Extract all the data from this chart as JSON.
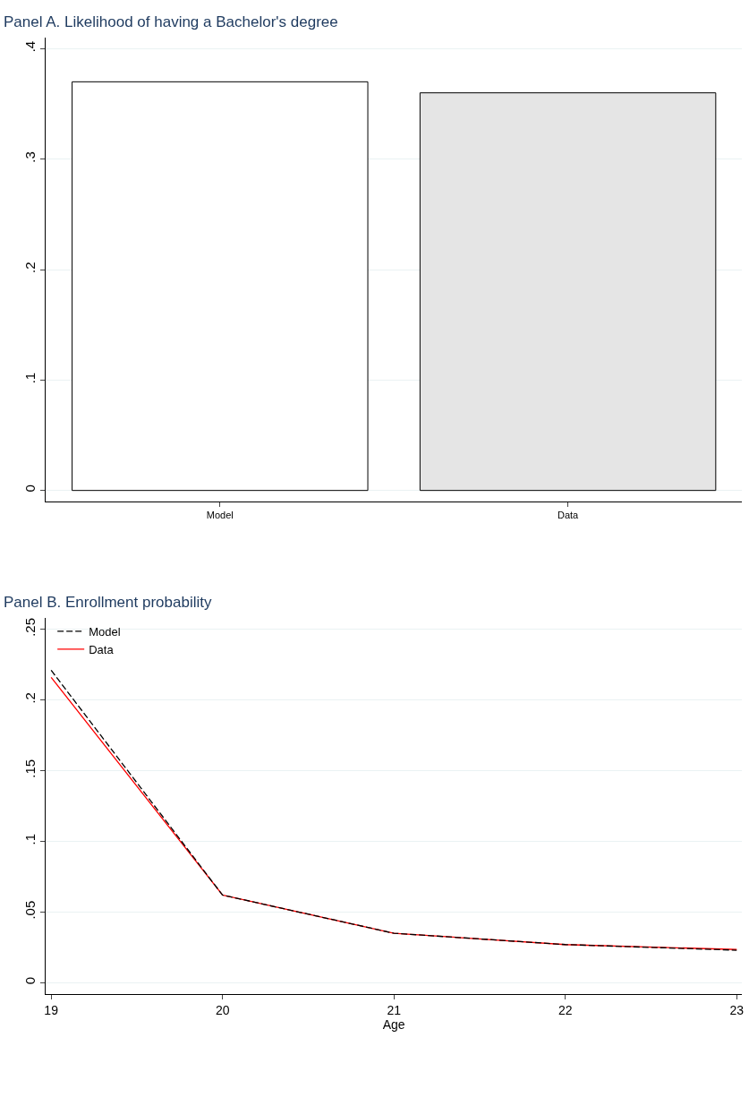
{
  "chart_data": [
    {
      "type": "bar",
      "title": "Panel A. Likelihood of having a Bachelor's degree",
      "categories": [
        "Model",
        "Data"
      ],
      "values": [
        0.37,
        0.36
      ],
      "colors": [
        "#ffffff",
        "#e5e5e5"
      ],
      "ylim": [
        -0.01,
        0.41
      ],
      "yticks": [
        {
          "value": 0,
          "label": "0"
        },
        {
          "value": 0.1,
          "label": ".1"
        },
        {
          "value": 0.2,
          "label": ".2"
        },
        {
          "value": 0.3,
          "label": ".3"
        },
        {
          "value": 0.4,
          "label": ".4"
        }
      ],
      "grid": "y",
      "legend": false
    },
    {
      "type": "line",
      "title": "Panel B. Enrollment probability",
      "xlabel": "Age",
      "x": [
        19,
        20,
        21,
        22,
        23
      ],
      "series": [
        {
          "name": "Model",
          "color": "#000000",
          "line_style": "dashed",
          "values": [
            0.221,
            0.062,
            0.035,
            0.027,
            0.023
          ]
        },
        {
          "name": "Data",
          "color": "#ff0000",
          "line_style": "solid",
          "values": [
            0.216,
            0.062,
            0.035,
            0.027,
            0.0235
          ]
        }
      ],
      "xlim": [
        18.97,
        23.03
      ],
      "xticks": [
        19,
        20,
        21,
        22,
        23
      ],
      "ylim": [
        -0.008,
        0.258
      ],
      "yticks": [
        {
          "value": 0,
          "label": "0"
        },
        {
          "value": 0.05,
          "label": ".05"
        },
        {
          "value": 0.1,
          "label": ".1"
        },
        {
          "value": 0.15,
          "label": ".15"
        },
        {
          "value": 0.2,
          "label": ".2"
        },
        {
          "value": 0.25,
          "label": ".25"
        }
      ],
      "grid": "y",
      "legend": "top left",
      "marker": "none"
    }
  ]
}
